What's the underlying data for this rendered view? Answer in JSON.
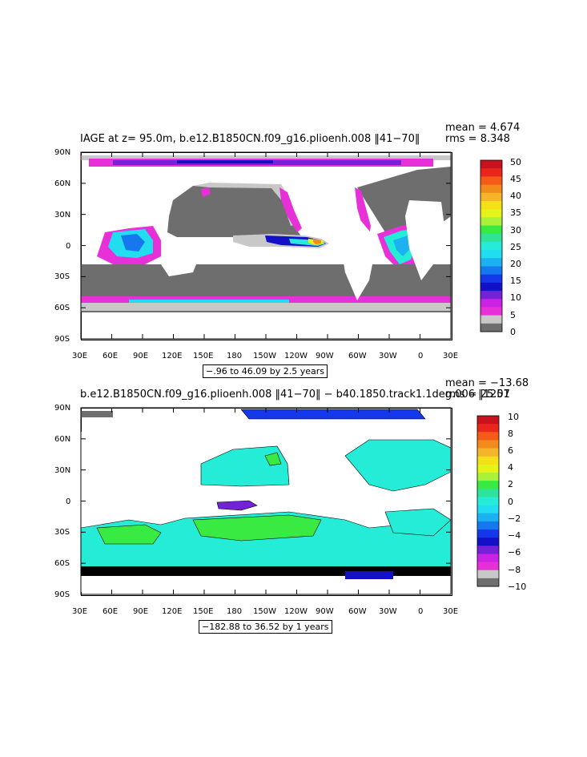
{
  "panels": [
    {
      "title": "IAGE at z=  95.0m, b.e12.B1850CN.f09_g16.plioenh.008 ‖41−70‖",
      "mean_label": "mean = 4.674",
      "rms_label": "rms = 8.348",
      "range_label": "−.96 to 46.09 by 2.5 years",
      "lat_ticks": [
        "90N",
        "60N",
        "30N",
        "0",
        "30S",
        "60S",
        "90S"
      ],
      "lon_ticks": [
        "30E",
        "60E",
        "90E",
        "120E",
        "150E",
        "180",
        "150W",
        "120W",
        "90W",
        "60W",
        "30W",
        "0",
        "30E"
      ],
      "colorbar_labels": [
        "50",
        "45",
        "40",
        "35",
        "30",
        "25",
        "20",
        "15",
        "10",
        "5",
        "0"
      ],
      "colorbar_colors": [
        "#c8121e",
        "#e8261b",
        "#f55a18",
        "#f38b1c",
        "#f4b52a",
        "#f4df18",
        "#e4f418",
        "#aaf23a",
        "#38ea42",
        "#2fe39a",
        "#24ecd7",
        "#22dcf0",
        "#1cb2f2",
        "#1678ef",
        "#1438ea",
        "#1410c8",
        "#7422d6",
        "#cc22e6",
        "#e830d8",
        "#c8c8c8",
        "#6e6e6e"
      ]
    },
    {
      "title": "b.e12.B1850CN.f09_g16.plioenh.008 ‖41−70‖ − b40.1850.track1.1deg.006 ‖1251",
      "mean_label": "mean = −13.68",
      "rms_label": "rms = 25.07",
      "range_label": "−182.88 to 36.52 by 1 years",
      "lat_ticks": [
        "90N",
        "60N",
        "30N",
        "0",
        "30S",
        "60S",
        "90S"
      ],
      "lon_ticks": [
        "30E",
        "60E",
        "90E",
        "120E",
        "150E",
        "180",
        "150W",
        "120W",
        "90W",
        "60W",
        "30W",
        "0",
        "30E"
      ],
      "colorbar_labels": [
        "10",
        "8",
        "6",
        "4",
        "2",
        "0",
        "−2",
        "−4",
        "−6",
        "−8",
        "−10"
      ],
      "colorbar_colors": [
        "#c8121e",
        "#e8261b",
        "#f55a18",
        "#f38b1c",
        "#f4b52a",
        "#f4df18",
        "#e4f418",
        "#aaf23a",
        "#38ea42",
        "#2fe39a",
        "#24ecd7",
        "#22dcf0",
        "#1cb2f2",
        "#1678ef",
        "#1438ea",
        "#1410c8",
        "#7422d6",
        "#cc22e6",
        "#e830d8",
        "#c8c8c8",
        "#6e6e6e"
      ]
    }
  ],
  "colors": {
    "land": "#ffffff",
    "ocean_low": "#6e6e6e",
    "ocean_diff": "#24ecd7",
    "contour": "#000000"
  }
}
